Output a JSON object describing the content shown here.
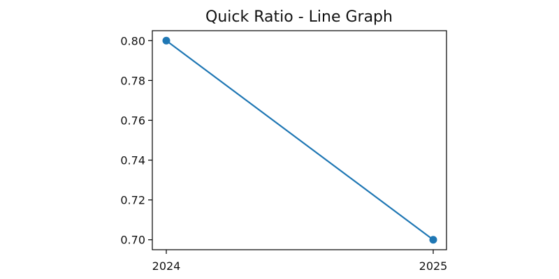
{
  "chart_data": {
    "type": "line",
    "title": "Quick Ratio - Line Graph",
    "xlabel": "",
    "ylabel": "",
    "categories": [
      "2024",
      "2025"
    ],
    "series": [
      {
        "values": [
          0.8,
          0.7
        ],
        "color": "#1f77b4",
        "marker": "circle"
      }
    ],
    "y_ticks": [
      "0.70",
      "0.72",
      "0.74",
      "0.76",
      "0.78",
      "0.80"
    ],
    "x_ticks": [
      "2024",
      "2025"
    ],
    "ylim": [
      0.695,
      0.805
    ],
    "grid": false,
    "legend": "none"
  }
}
